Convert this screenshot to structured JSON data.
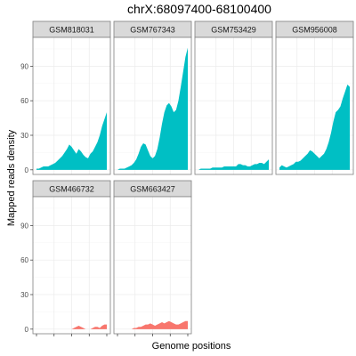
{
  "chart_data": {
    "type": "area",
    "title": "chrX:68097400-68100400",
    "xlabel": "Genome positions",
    "ylabel": "Mapped reads density",
    "ylim": [
      -4,
      115
    ],
    "yticks": [
      0,
      30,
      60,
      90
    ],
    "xlim": [
      68097400,
      68100400
    ],
    "grid": true,
    "colors": {
      "upper": "#00BFC4",
      "lower": "#F8766D"
    },
    "panels": [
      {
        "name": "GSM818031",
        "color": "#00BFC4",
        "x": [
          68097400,
          68097500,
          68097600,
          68097700,
          68097800,
          68097900,
          68098000,
          68098100,
          68098200,
          68098300,
          68098400,
          68098500,
          68098600,
          68098700,
          68098800,
          68098900,
          68099000,
          68099100,
          68099200,
          68099300,
          68099400,
          68099500,
          68099600,
          68099700,
          68099800,
          68099900,
          68100000,
          68100100,
          68100200,
          68100300,
          68100400
        ],
        "y": [
          1,
          1,
          2,
          3,
          3,
          3,
          4,
          5,
          6,
          8,
          10,
          12,
          15,
          18,
          22,
          20,
          17,
          14,
          18,
          16,
          13,
          11,
          10,
          14,
          16,
          20,
          24,
          30,
          38,
          44,
          50
        ]
      },
      {
        "name": "GSM767343",
        "color": "#00BFC4",
        "x": [
          68097400,
          68097500,
          68097600,
          68097700,
          68097800,
          68097900,
          68098000,
          68098100,
          68098200,
          68098300,
          68098400,
          68098500,
          68098600,
          68098700,
          68098800,
          68098900,
          68099000,
          68099100,
          68099200,
          68099300,
          68099400,
          68099500,
          68099600,
          68099700,
          68099800,
          68099900,
          68100000,
          68100100,
          68100200,
          68100300,
          68100400
        ],
        "y": [
          0,
          1,
          1,
          1,
          2,
          3,
          4,
          6,
          9,
          14,
          20,
          23,
          22,
          17,
          12,
          10,
          12,
          18,
          28,
          40,
          50,
          56,
          58,
          55,
          50,
          52,
          60,
          72,
          85,
          98,
          106
        ]
      },
      {
        "name": "GSM753429",
        "color": "#00BFC4",
        "x": [
          68097400,
          68097500,
          68097600,
          68097700,
          68097800,
          68097900,
          68098000,
          68098100,
          68098200,
          68098300,
          68098400,
          68098500,
          68098600,
          68098700,
          68098800,
          68098900,
          68099000,
          68099100,
          68099200,
          68099300,
          68099400,
          68099500,
          68099600,
          68099700,
          68099800,
          68099900,
          68100000,
          68100100,
          68100200,
          68100300,
          68100400
        ],
        "y": [
          0,
          1,
          1,
          1,
          1,
          1,
          2,
          2,
          2,
          2,
          2,
          3,
          3,
          3,
          3,
          3,
          3,
          5,
          5,
          4,
          4,
          3,
          3,
          4,
          5,
          5,
          6,
          6,
          5,
          7,
          9
        ]
      },
      {
        "name": "GSM956008",
        "color": "#00BFC4",
        "x": [
          68097400,
          68097500,
          68097600,
          68097700,
          68097800,
          68097900,
          68098000,
          68098100,
          68098200,
          68098300,
          68098400,
          68098500,
          68098600,
          68098700,
          68098800,
          68098900,
          68099000,
          68099100,
          68099200,
          68099300,
          68099400,
          68099500,
          68099600,
          68099700,
          68099800,
          68099900,
          68100000,
          68100100,
          68100200,
          68100300,
          68100400
        ],
        "y": [
          2,
          4,
          3,
          2,
          3,
          4,
          5,
          7,
          7,
          8,
          10,
          12,
          14,
          17,
          16,
          14,
          12,
          10,
          12,
          14,
          18,
          24,
          32,
          42,
          50,
          52,
          55,
          62,
          68,
          74,
          72
        ]
      },
      {
        "name": "GSM466732",
        "color": "#F8766D",
        "x": [
          68097400,
          68097500,
          68097600,
          68097700,
          68097800,
          68097900,
          68098000,
          68098100,
          68098200,
          68098300,
          68098400,
          68098500,
          68098600,
          68098700,
          68098800,
          68098900,
          68099000,
          68099100,
          68099200,
          68099300,
          68099400,
          68099500,
          68099600,
          68099700,
          68099800,
          68099900,
          68100000,
          68100100,
          68100200,
          68100300,
          68100400
        ],
        "y": [
          0,
          0,
          0,
          0,
          0,
          0,
          0,
          0,
          0,
          0,
          0,
          0,
          0,
          0,
          0,
          0,
          1,
          2,
          3,
          2,
          1,
          0,
          0,
          0,
          1,
          2,
          2,
          1,
          3,
          4,
          4
        ]
      },
      {
        "name": "GSM663427",
        "color": "#F8766D",
        "x": [
          68097400,
          68097500,
          68097600,
          68097700,
          68097800,
          68097900,
          68098000,
          68098100,
          68098200,
          68098300,
          68098400,
          68098500,
          68098600,
          68098700,
          68098800,
          68098900,
          68099000,
          68099100,
          68099200,
          68099300,
          68099400,
          68099500,
          68099600,
          68099700,
          68099800,
          68099900,
          68100000,
          68100100,
          68100200,
          68100300,
          68100400
        ],
        "y": [
          0,
          0,
          0,
          0,
          0,
          0,
          0,
          1,
          1,
          2,
          2,
          3,
          4,
          4,
          5,
          4,
          3,
          4,
          5,
          6,
          5,
          6,
          7,
          6,
          5,
          4,
          4,
          5,
          6,
          7,
          7
        ]
      }
    ]
  }
}
